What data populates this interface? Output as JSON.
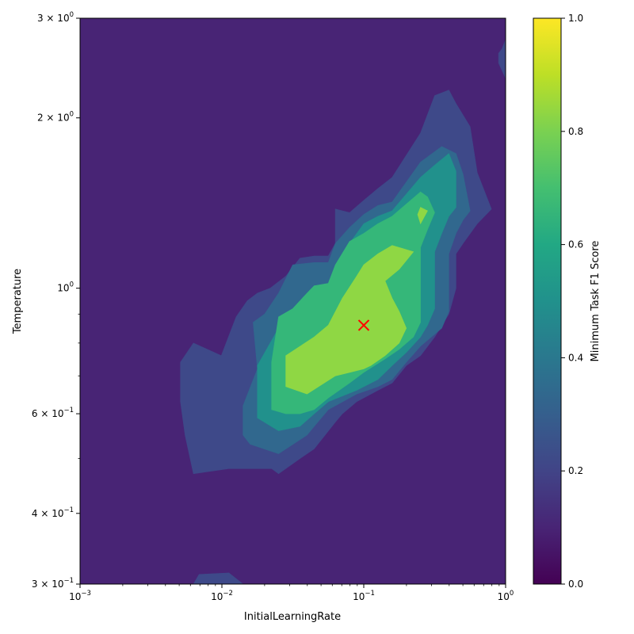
{
  "chart_data": {
    "type": "contour",
    "title": "",
    "xlabel": "InitialLearningRate",
    "ylabel": "Temperature",
    "xscale": "log",
    "yscale": "log",
    "xlim": [
      0.001,
      1
    ],
    "ylim": [
      0.3,
      3
    ],
    "x_ticks": [
      {
        "value": 0.001,
        "base": "10",
        "exp": "−3"
      },
      {
        "value": 0.01,
        "base": "10",
        "exp": "−2"
      },
      {
        "value": 0.1,
        "base": "10",
        "exp": "−1"
      },
      {
        "value": 1,
        "base": "10",
        "exp": "0"
      }
    ],
    "y_ticks": [
      {
        "value": 0.3,
        "mant": "3 × 10",
        "exp": "−1"
      },
      {
        "value": 0.4,
        "mant": "4 × 10",
        "exp": "−1"
      },
      {
        "value": 0.6,
        "mant": "6 × 10",
        "exp": "−1"
      },
      {
        "value": 1,
        "mant": "10",
        "exp": "0"
      },
      {
        "value": 2,
        "mant": "2 × 10",
        "exp": "0"
      },
      {
        "value": 3,
        "mant": "3 × 10",
        "exp": "0"
      }
    ],
    "y_minor_ticks": [
      0.5,
      0.7,
      0.8,
      0.9
    ],
    "colorbar": {
      "label": "Minimum Task F1 Score",
      "range": [
        0,
        1
      ],
      "ticks": [
        "0.0",
        "0.2",
        "0.4",
        "0.6",
        "0.8",
        "1.0"
      ],
      "tick_values": [
        0,
        0.2,
        0.4,
        0.6,
        0.8,
        1.0
      ],
      "colormap": "viridis"
    },
    "levels": [
      {
        "range": [
          0.1,
          0.2
        ],
        "color": "#482475",
        "regions": [
          [
            [
              0.001,
              0.3
            ],
            [
              1,
              0.3
            ],
            [
              1,
              3
            ],
            [
              0.001,
              3
            ]
          ]
        ]
      },
      {
        "range": [
          0.2,
          0.3
        ],
        "color": "#3e4989",
        "regions": [
          [
            [
              0.0051,
              0.74
            ],
            [
              0.0063,
              0.8
            ],
            [
              0.0099,
              0.76
            ],
            [
              0.0126,
              0.89
            ],
            [
              0.0151,
              0.95
            ],
            [
              0.0178,
              0.98
            ],
            [
              0.0219,
              1.0
            ],
            [
              0.0282,
              1.05
            ],
            [
              0.0355,
              1.13
            ],
            [
              0.0447,
              1.14
            ],
            [
              0.0562,
              1.14
            ],
            [
              0.063,
              1.2
            ],
            [
              0.063,
              1.38
            ],
            [
              0.0794,
              1.36
            ],
            [
              0.1,
              1.43
            ],
            [
              0.1259,
              1.5
            ],
            [
              0.1585,
              1.57
            ],
            [
              0.2512,
              1.88
            ],
            [
              0.3162,
              2.19
            ],
            [
              0.3981,
              2.24
            ],
            [
              0.4467,
              2.12
            ],
            [
              0.5623,
              1.93
            ],
            [
              0.631,
              1.6
            ],
            [
              0.7943,
              1.38
            ],
            [
              0.631,
              1.3
            ],
            [
              0.5012,
              1.2
            ],
            [
              0.4467,
              1.15
            ],
            [
              0.4467,
              1.0
            ],
            [
              0.3981,
              0.9
            ],
            [
              0.3162,
              0.82
            ],
            [
              0.2512,
              0.76
            ],
            [
              0.1995,
              0.73
            ],
            [
              0.1585,
              0.68
            ],
            [
              0.1259,
              0.66
            ],
            [
              0.0891,
              0.63
            ],
            [
              0.0707,
              0.6
            ],
            [
              0.0631,
              0.58
            ],
            [
              0.0447,
              0.52
            ],
            [
              0.0355,
              0.5
            ],
            [
              0.0251,
              0.47
            ],
            [
              0.0224,
              0.48
            ],
            [
              0.0178,
              0.48
            ],
            [
              0.0141,
              0.48
            ],
            [
              0.0112,
              0.48
            ],
            [
              0.0063,
              0.47
            ],
            [
              0.0055,
              0.55
            ],
            [
              0.0051,
              0.63
            ]
          ],
          [
            [
              0.0063,
              0.3
            ],
            [
              0.0069,
              0.312
            ],
            [
              0.0112,
              0.314
            ],
            [
              0.0141,
              0.3
            ]
          ],
          [
            [
              0.8913,
              2.5
            ],
            [
              1,
              2.35
            ],
            [
              1,
              2.75
            ],
            [
              0.9441,
              2.65
            ],
            [
              0.8913,
              2.6
            ]
          ]
        ]
      },
      {
        "range": [
          0.3,
          0.5
        ],
        "color": "#31688e",
        "regions": [
          [
            [
              0.0141,
              0.55
            ],
            [
              0.0141,
              0.62
            ],
            [
              0.0178,
              0.72
            ],
            [
              0.0166,
              0.87
            ],
            [
              0.02,
              0.9
            ],
            [
              0.0251,
              0.98
            ],
            [
              0.0316,
              1.1
            ],
            [
              0.0447,
              1.11
            ],
            [
              0.0562,
              1.11
            ],
            [
              0.0631,
              1.2
            ],
            [
              0.0794,
              1.28
            ],
            [
              0.1,
              1.35
            ],
            [
              0.1259,
              1.4
            ],
            [
              0.1585,
              1.42
            ],
            [
              0.2512,
              1.67
            ],
            [
              0.3548,
              1.78
            ],
            [
              0.4467,
              1.73
            ],
            [
              0.5012,
              1.59
            ],
            [
              0.5623,
              1.37
            ],
            [
              0.5012,
              1.32
            ],
            [
              0.4467,
              1.25
            ],
            [
              0.3981,
              1.15
            ],
            [
              0.3981,
              0.91
            ],
            [
              0.3548,
              0.85
            ],
            [
              0.2512,
              0.79
            ],
            [
              0.1995,
              0.74
            ],
            [
              0.1585,
              0.69
            ],
            [
              0.1259,
              0.67
            ],
            [
              0.0891,
              0.65
            ],
            [
              0.0562,
              0.61
            ],
            [
              0.0447,
              0.57
            ],
            [
              0.0398,
              0.55
            ],
            [
              0.0251,
              0.51
            ],
            [
              0.0158,
              0.53
            ]
          ]
        ]
      },
      {
        "range": [
          0.5,
          0.6
        ],
        "color": "#21918c",
        "regions": [
          [
            [
              0.0178,
              0.67
            ],
            [
              0.0178,
              0.73
            ],
            [
              0.0251,
              0.85
            ],
            [
              0.0316,
              0.88
            ],
            [
              0.0447,
              1.01
            ],
            [
              0.0562,
              1.01
            ],
            [
              0.0631,
              1.1
            ],
            [
              0.0794,
              1.2
            ],
            [
              0.1,
              1.3
            ],
            [
              0.1259,
              1.34
            ],
            [
              0.1585,
              1.37
            ],
            [
              0.2512,
              1.57
            ],
            [
              0.3162,
              1.65
            ],
            [
              0.3981,
              1.73
            ],
            [
              0.4467,
              1.61
            ],
            [
              0.4467,
              1.39
            ],
            [
              0.3981,
              1.34
            ],
            [
              0.3548,
              1.25
            ],
            [
              0.3162,
              1.16
            ],
            [
              0.3162,
              0.92
            ],
            [
              0.2818,
              0.86
            ],
            [
              0.2512,
              0.82
            ],
            [
              0.1995,
              0.77
            ],
            [
              0.1585,
              0.73
            ],
            [
              0.1259,
              0.69
            ],
            [
              0.0891,
              0.66
            ],
            [
              0.0562,
              0.63
            ],
            [
              0.0447,
              0.6
            ],
            [
              0.0355,
              0.57
            ],
            [
              0.0251,
              0.56
            ],
            [
              0.0178,
              0.59
            ]
          ]
        ]
      },
      {
        "range": [
          0.6,
          0.7
        ],
        "color": "#35b779",
        "regions": [
          [
            [
              0.0224,
              0.65
            ],
            [
              0.0224,
              0.74
            ],
            [
              0.0251,
              0.89
            ],
            [
              0.0316,
              0.92
            ],
            [
              0.0398,
              0.98
            ],
            [
              0.0447,
              1.01
            ],
            [
              0.0562,
              1.02
            ],
            [
              0.0631,
              1.1
            ],
            [
              0.0794,
              1.21
            ],
            [
              0.1,
              1.25
            ],
            [
              0.1259,
              1.3
            ],
            [
              0.1585,
              1.34
            ],
            [
              0.2512,
              1.48
            ],
            [
              0.2818,
              1.45
            ],
            [
              0.3162,
              1.36
            ],
            [
              0.2818,
              1.27
            ],
            [
              0.2512,
              1.18
            ],
            [
              0.2512,
              0.97
            ],
            [
              0.2512,
              0.87
            ],
            [
              0.2239,
              0.82
            ],
            [
              0.1778,
              0.78
            ],
            [
              0.1413,
              0.75
            ],
            [
              0.1,
              0.71
            ],
            [
              0.0794,
              0.68
            ],
            [
              0.0562,
              0.64
            ],
            [
              0.0447,
              0.61
            ],
            [
              0.0355,
              0.6
            ],
            [
              0.0282,
              0.6
            ],
            [
              0.0224,
              0.61
            ]
          ]
        ]
      },
      {
        "range": [
          0.7,
          0.8
        ],
        "color": "#8fd744",
        "regions": [
          [
            [
              0.0282,
              0.71
            ],
            [
              0.0282,
              0.76
            ],
            [
              0.0447,
              0.82
            ],
            [
              0.0562,
              0.86
            ],
            [
              0.0707,
              0.96
            ],
            [
              0.0891,
              1.05
            ],
            [
              0.1,
              1.1
            ],
            [
              0.1259,
              1.15
            ],
            [
              0.1585,
              1.19
            ],
            [
              0.2239,
              1.16
            ],
            [
              0.1778,
              1.08
            ],
            [
              0.1413,
              1.03
            ],
            [
              0.1585,
              0.96
            ],
            [
              0.1778,
              0.91
            ],
            [
              0.1995,
              0.85
            ],
            [
              0.1778,
              0.8
            ],
            [
              0.1413,
              0.76
            ],
            [
              0.1122,
              0.73
            ],
            [
              0.1,
              0.72
            ],
            [
              0.0794,
              0.71
            ],
            [
              0.0631,
              0.7
            ],
            [
              0.0398,
              0.65
            ],
            [
              0.0282,
              0.67
            ]
          ],
          [
            [
              0.2512,
              1.3
            ],
            [
              0.2399,
              1.35
            ],
            [
              0.2512,
              1.39
            ],
            [
              0.2818,
              1.37
            ]
          ]
        ]
      }
    ],
    "best_point": {
      "x": 0.1,
      "y": 0.86,
      "marker": "x",
      "color": "#ff0000"
    }
  }
}
